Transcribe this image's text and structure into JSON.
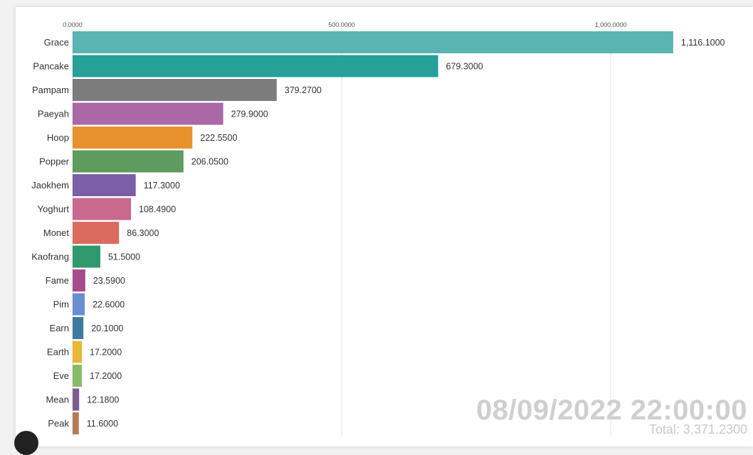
{
  "chart_data": {
    "type": "bar",
    "orientation": "horizontal",
    "categories": [
      "Grace",
      "Pancake",
      "Pampam",
      "Paeyah",
      "Hoop",
      "Popper",
      "Jaokhem",
      "Yoghurt",
      "Monet",
      "Kaofrang",
      "Fame",
      "Pim",
      "Earn",
      "Earth",
      "Eve",
      "Mean",
      "Peak"
    ],
    "values": [
      1116.1,
      679.3,
      379.27,
      279.9,
      222.55,
      206.05,
      117.3,
      108.49,
      86.3,
      51.5,
      23.59,
      22.6,
      20.1,
      17.2,
      17.2,
      12.18,
      11.6
    ],
    "value_labels": [
      "1,116.1000",
      "679.3000",
      "379.2700",
      "279.9000",
      "222.5500",
      "206.0500",
      "117.3000",
      "108.4900",
      "86.3000",
      "51.5000",
      "23.5900",
      "22.6000",
      "20.1000",
      "17.2000",
      "17.2000",
      "12.1800",
      "11.6000"
    ],
    "colors": [
      "#5ab4b1",
      "#26a099",
      "#7c7c7c",
      "#aa68a6",
      "#e8922e",
      "#5e9b5e",
      "#7b5ea5",
      "#c9698e",
      "#db6b5f",
      "#2f9a6c",
      "#a84b8a",
      "#6a8fd0",
      "#3d7ca0",
      "#e9b637",
      "#88bb66",
      "#7e5a92",
      "#b57a55"
    ],
    "x_ticks": [
      0,
      500,
      1000
    ],
    "x_tick_labels": [
      "0.0000",
      "500.0000",
      "1,000.0000"
    ],
    "xlim": [
      0,
      1230
    ],
    "grid": true,
    "timestamp": "08/09/2022 22:00:00",
    "total": "Total: 3,371.2300"
  }
}
